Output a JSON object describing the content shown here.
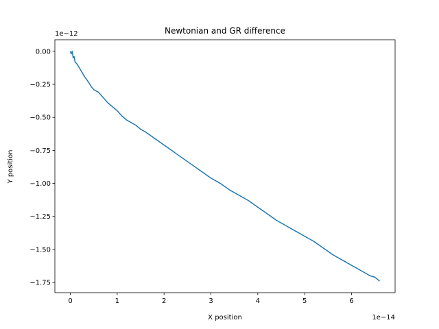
{
  "chart_data": {
    "type": "line",
    "title": "Newtonian and GR difference",
    "xlabel": "X position",
    "ylabel": "Y position",
    "x_offset_text": "1e−14",
    "y_offset_text": "1e−12",
    "xlim": [
      -0.33,
      6.93
    ],
    "ylim": [
      -1.8273,
      0.0873
    ],
    "x_ticks": [
      0,
      1,
      2,
      3,
      4,
      5,
      6
    ],
    "x_tick_labels": [
      "0",
      "1",
      "2",
      "3",
      "4",
      "5",
      "6"
    ],
    "y_ticks": [
      0.0,
      -0.25,
      -0.5,
      -0.75,
      -1.0,
      -1.25,
      -1.5,
      -1.75
    ],
    "y_tick_labels": [
      "0.00",
      "−0.25",
      "−0.50",
      "−0.75",
      "−1.00",
      "−1.25",
      "−1.50",
      "−1.75"
    ],
    "grid": false,
    "series": [
      {
        "color": "#1f77b4",
        "x": [
          0.0,
          0.02,
          0.04,
          0.06,
          0.08,
          0.1,
          0.15,
          0.2,
          0.3,
          0.4,
          0.45,
          0.5,
          0.6,
          0.7,
          0.8,
          0.9,
          1.0,
          1.1,
          1.2,
          1.3,
          1.4,
          1.5,
          1.6,
          1.8,
          2.0,
          2.2,
          2.4,
          2.6,
          2.8,
          3.0,
          3.2,
          3.4,
          3.6,
          3.8,
          4.0,
          4.2,
          4.4,
          4.6,
          4.8,
          5.0,
          5.2,
          5.4,
          5.6,
          5.8,
          6.0,
          6.2,
          6.4,
          6.5,
          6.6
        ],
        "y": [
          0.0,
          -0.02,
          0.0,
          -0.05,
          -0.04,
          -0.08,
          -0.1,
          -0.13,
          -0.19,
          -0.24,
          -0.27,
          -0.29,
          -0.31,
          -0.35,
          -0.39,
          -0.42,
          -0.45,
          -0.49,
          -0.52,
          -0.54,
          -0.56,
          -0.59,
          -0.61,
          -0.66,
          -0.71,
          -0.76,
          -0.81,
          -0.86,
          -0.91,
          -0.96,
          -1.0,
          -1.05,
          -1.09,
          -1.13,
          -1.18,
          -1.23,
          -1.28,
          -1.32,
          -1.36,
          -1.4,
          -1.44,
          -1.49,
          -1.54,
          -1.58,
          -1.62,
          -1.66,
          -1.7,
          -1.71,
          -1.74
        ]
      }
    ]
  }
}
